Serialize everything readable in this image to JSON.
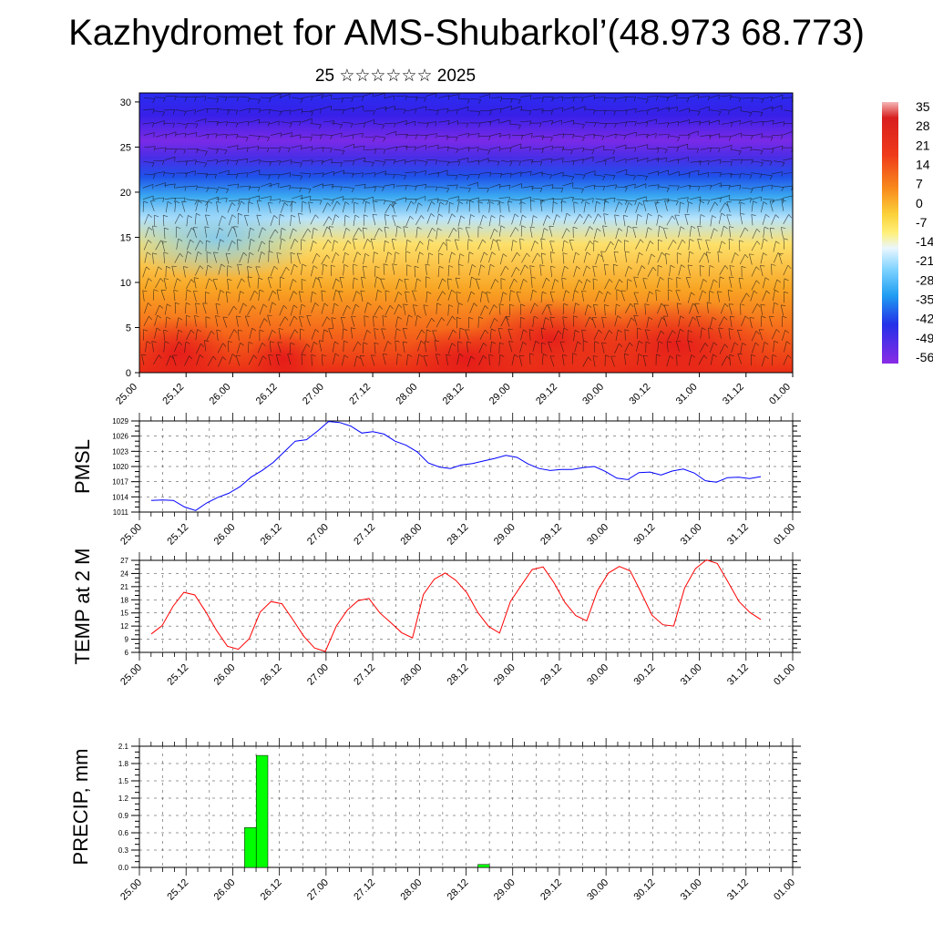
{
  "title": "Kazhydromet for AMS-Shubarkol’(48.973 68.773)",
  "subtitle": "25 ☆☆☆☆☆☆ 2025",
  "chart_data": [
    {
      "type": "heatmap",
      "description_kind": "height-time cross-section with wind barbs",
      "y_ticks": [
        "0",
        "5",
        "10",
        "15",
        "20",
        "25",
        "30"
      ],
      "ylim": [
        0,
        31
      ],
      "x_ticks": [
        "25.00",
        "25.12",
        "26.00",
        "26.12",
        "27.00",
        "27.12",
        "28.00",
        "28.12",
        "29.00",
        "29.12",
        "30.00",
        "30.12",
        "31.00",
        "31.12",
        "01.00"
      ],
      "colorbar_labels": [
        "35",
        "28",
        "21",
        "14",
        "7",
        "0",
        "-7",
        "-14",
        "-21",
        "-28",
        "-35",
        "-42",
        "-49",
        "-56"
      ],
      "colorbar_range": [
        -60,
        38
      ]
    },
    {
      "type": "line",
      "ylabel": "PMSL",
      "ylim": [
        1011,
        1029
      ],
      "y_ticks": [
        "1029",
        "1026",
        "1023",
        "1020",
        "1017",
        "1014",
        "1011"
      ],
      "x_ticks": [
        "25.00",
        "25.12",
        "26.00",
        "26.12",
        "27.00",
        "27.12",
        "28.00",
        "28.12",
        "29.00",
        "29.12",
        "30.00",
        "30.12",
        "31.00",
        "31.12",
        "01.00"
      ],
      "line_color": "#0000ff",
      "series": [
        {
          "values": [
            1013.3,
            1013.4,
            1013.3,
            1012.0,
            1011.3,
            1012.8,
            1013.9,
            1014.7,
            1016.0,
            1017.9,
            1019.2,
            1020.8,
            1022.9,
            1025.0,
            1025.3,
            1027.0,
            1028.9,
            1028.7,
            1028.0,
            1026.6,
            1026.9,
            1026.4,
            1025.0,
            1024.2,
            1022.9,
            1020.7,
            1019.9,
            1019.6,
            1020.3,
            1020.6,
            1021.1,
            1021.6,
            1022.2,
            1021.8,
            1020.5,
            1019.6,
            1019.2,
            1019.4,
            1019.4,
            1019.8,
            1020.0,
            1019.0,
            1017.7,
            1017.4,
            1018.8,
            1018.9,
            1018.3,
            1019.1,
            1019.5,
            1018.7,
            1017.2,
            1016.9,
            1017.8,
            1017.9,
            1017.6,
            1018.0
          ]
        }
      ]
    },
    {
      "type": "line",
      "ylabel": "TEMP at 2 M",
      "ylim": [
        6,
        27
      ],
      "y_ticks": [
        "27",
        "24",
        "21",
        "18",
        "15",
        "12",
        "9",
        "6"
      ],
      "x_ticks": [
        "25.00",
        "25.12",
        "26.00",
        "26.12",
        "27.00",
        "27.12",
        "28.00",
        "28.12",
        "29.00",
        "29.12",
        "30.00",
        "30.12",
        "31.00",
        "31.12",
        "01.00"
      ],
      "line_color": "#ff0000",
      "series": [
        {
          "values": [
            10.2,
            12.1,
            16.5,
            19.7,
            19.1,
            15.3,
            11.0,
            7.4,
            6.7,
            9.1,
            15.2,
            17.6,
            17.1,
            13.5,
            9.7,
            7.0,
            6.2,
            12.0,
            15.6,
            17.8,
            18.3,
            15.0,
            12.8,
            10.5,
            9.3,
            19.2,
            22.7,
            24.1,
            22.4,
            19.6,
            15.1,
            11.9,
            10.4,
            17.6,
            21.3,
            24.9,
            25.5,
            21.9,
            17.4,
            14.4,
            13.2,
            20.1,
            24.1,
            25.6,
            24.6,
            19.7,
            14.5,
            12.3,
            12.0,
            20.7,
            25.1,
            27.1,
            26.3,
            22.0,
            17.6,
            15.1,
            13.5
          ]
        }
      ]
    },
    {
      "type": "bar",
      "ylabel": "PRECIP, mm",
      "ylim": [
        0,
        2.1
      ],
      "y_ticks": [
        "2.1",
        "1.8",
        "1.5",
        "1.2",
        "0.9",
        "0.6",
        "0.3",
        "0.0"
      ],
      "x_ticks": [
        "25.00",
        "25.12",
        "26.00",
        "26.12",
        "27.00",
        "27.12",
        "28.00",
        "28.12",
        "29.00",
        "29.12",
        "30.00",
        "30.12",
        "31.00",
        "31.12",
        "01.00"
      ],
      "bar_color": "#00ff00",
      "bars": [
        {
          "hour": 24,
          "value": 0.69
        },
        {
          "hour": 27,
          "value": 1.94
        },
        {
          "hour": 84,
          "value": 0.05
        }
      ]
    }
  ]
}
